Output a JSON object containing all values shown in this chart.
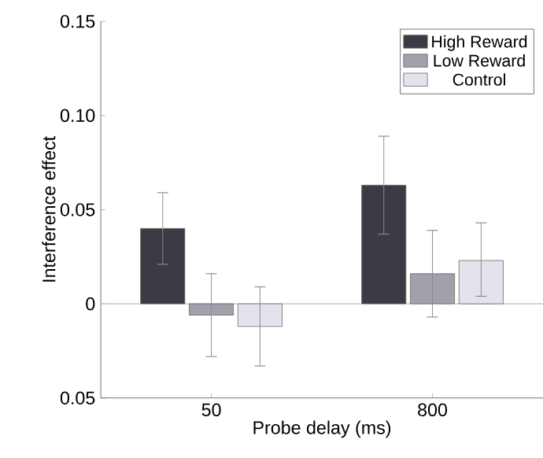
{
  "chart_data": {
    "type": "bar",
    "xlabel": "Probe delay (ms)",
    "ylabel": "Interference effect",
    "categories": [
      "50",
      "800"
    ],
    "series": [
      {
        "name": "High Reward",
        "color": "#3a3b45",
        "values": [
          0.04,
          0.063
        ],
        "errors": [
          [
            0.021,
            0.059
          ],
          [
            0.037,
            0.089
          ]
        ]
      },
      {
        "name": "Low Reward",
        "color": "#a0a1aa",
        "values": [
          -0.006,
          0.016
        ],
        "errors": [
          [
            -0.028,
            0.016
          ],
          [
            -0.007,
            0.039
          ]
        ]
      },
      {
        "name": "Control",
        "color": "#e2e3ec",
        "values": [
          -0.012,
          0.023
        ],
        "errors": [
          [
            -0.033,
            0.009
          ],
          [
            0.004,
            0.043
          ]
        ]
      }
    ],
    "ylim": [
      -0.05,
      0.15
    ],
    "yticks": [
      {
        "value": -0.05,
        "label": "0.05"
      },
      0,
      0.05,
      {
        "value": 0.1,
        "label": "0.10"
      },
      0.15
    ],
    "ref_lines": [
      {
        "axis": "y",
        "value": 0,
        "color": "#c8c8c8"
      }
    ],
    "legend": "top right",
    "grid": false
  }
}
